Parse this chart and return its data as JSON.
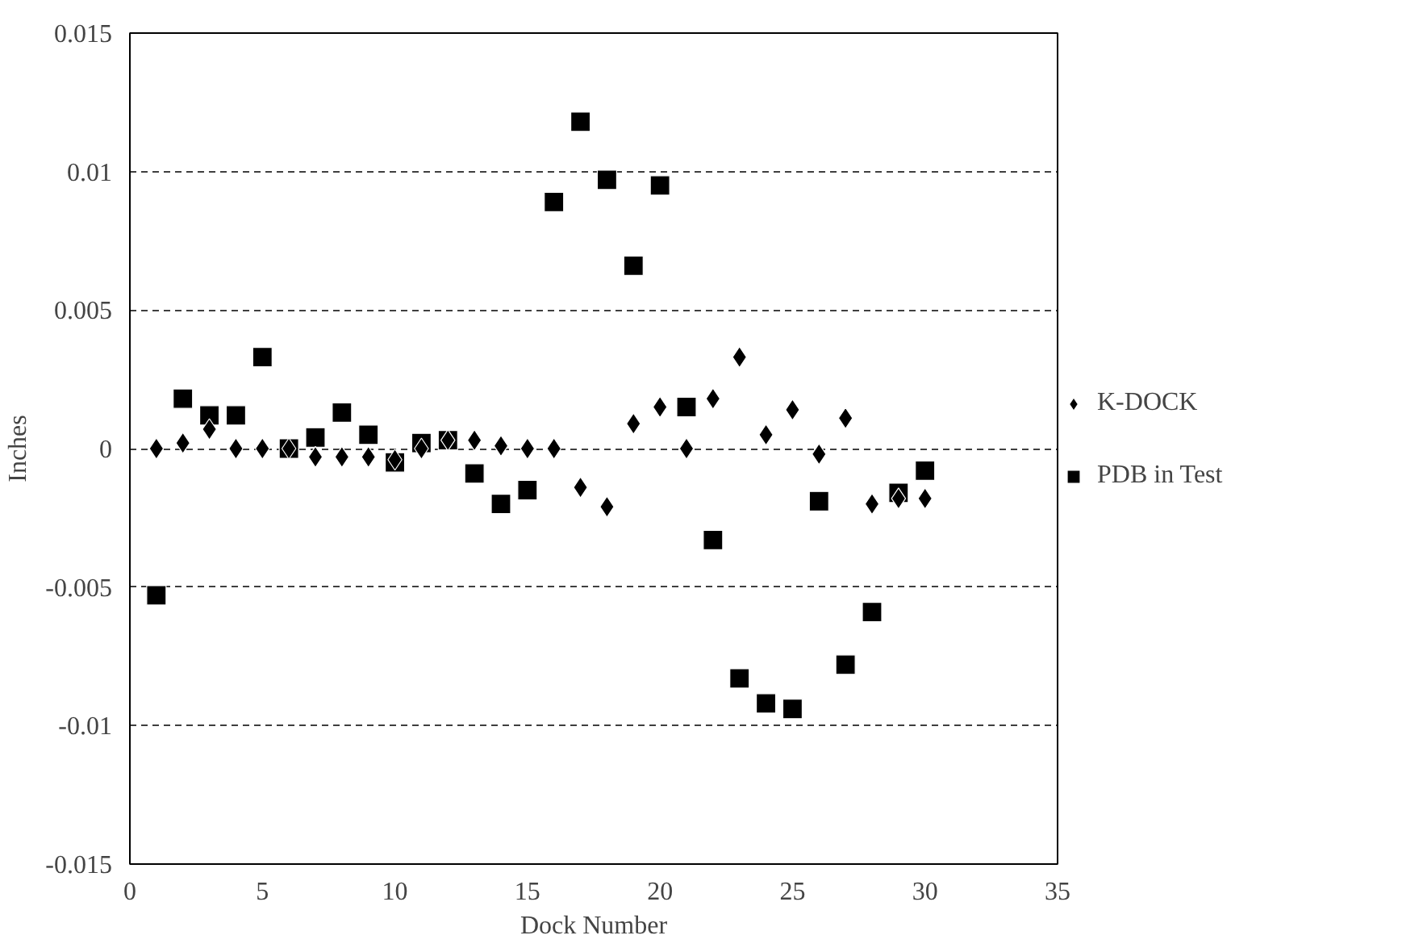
{
  "chart_data": {
    "type": "scatter",
    "xlabel": "Dock Number",
    "ylabel": "Inches",
    "x": [
      1,
      2,
      3,
      4,
      5,
      6,
      7,
      8,
      9,
      10,
      11,
      12,
      13,
      14,
      15,
      16,
      17,
      18,
      19,
      20,
      21,
      22,
      23,
      24,
      25,
      26,
      27,
      28,
      29,
      30
    ],
    "series": [
      {
        "name": "K-DOCK",
        "color": "#000000",
        "marker": "diamond",
        "values": [
          0,
          0.0002,
          0.0007,
          0,
          0,
          0,
          -0.0003,
          -0.0003,
          -0.0003,
          -0.0004,
          0,
          0.0003,
          0.0003,
          0.0001,
          0,
          0,
          -0.0014,
          -0.0021,
          0.0009,
          0.0015,
          0,
          0.0018,
          0.0033,
          0.0005,
          0.0014,
          -0.0002,
          0.0011,
          -0.002,
          -0.0018,
          -0.0018
        ]
      },
      {
        "name": "PDB in Test",
        "color": "#000000",
        "marker": "square",
        "values": [
          -0.0053,
          0.0018,
          0.0012,
          0.0012,
          0.0033,
          0,
          0.0004,
          0.0013,
          0.0005,
          -0.0005,
          0.0002,
          0.0003,
          -0.0009,
          -0.002,
          -0.0015,
          0.0089,
          0.0118,
          0.0097,
          0.0066,
          0.0095,
          0.0015,
          -0.0033,
          -0.0083,
          -0.0092,
          -0.0094,
          -0.0019,
          -0.0078,
          -0.0059,
          -0.0016,
          -0.0008
        ]
      }
    ],
    "xlim": [
      0,
      35
    ],
    "xticks": [
      0,
      5,
      10,
      15,
      20,
      25,
      30,
      35
    ],
    "ylim": [
      -0.015,
      0.015
    ],
    "yticks": [
      -0.015,
      -0.01,
      -0.005,
      0,
      0.005,
      0.01,
      0.015
    ],
    "grid": "y",
    "legend": "right"
  }
}
